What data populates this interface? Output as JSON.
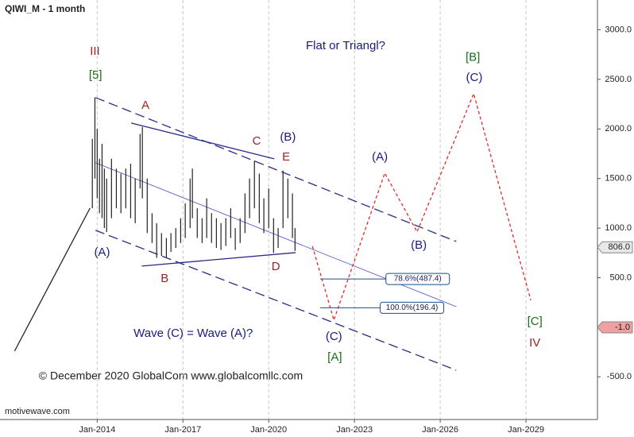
{
  "chart_data": {
    "type": "ohlc",
    "title": "QIWI_M - 1 month",
    "watermark": "motivewave.com",
    "copyright": "© December 2020 GlobalCom www.globalcomllc.com",
    "xlim": [
      2010.6,
      2031.5
    ],
    "ylim": [
      -930,
      3300
    ],
    "xticks": [
      {
        "value": 2014,
        "label": "Jan-2014"
      },
      {
        "value": 2017,
        "label": "Jan-2017"
      },
      {
        "value": 2020,
        "label": "Jan-2020"
      },
      {
        "value": 2023,
        "label": "Jan-2023"
      },
      {
        "value": 2026,
        "label": "Jan-2026"
      },
      {
        "value": 2029,
        "label": "Jan-2029"
      }
    ],
    "yticks": [
      {
        "value": 3000,
        "label": "3000.0"
      },
      {
        "value": 2500,
        "label": "2500.0"
      },
      {
        "value": 2000,
        "label": "2000.0"
      },
      {
        "value": 1500,
        "label": "1500.0"
      },
      {
        "value": 1000,
        "label": "1000.0"
      },
      {
        "value": 500,
        "label": "500.0"
      },
      {
        "value": -500,
        "label": "-500.0"
      }
    ],
    "grid": "vertical",
    "bar_color": "#222222",
    "x": [
      2013.83,
      2013.92,
      2014.0,
      2014.08,
      2014.17,
      2014.25,
      2014.33,
      2014.5,
      2014.67,
      2014.83,
      2015.0,
      2015.17,
      2015.33,
      2015.5,
      2015.58,
      2015.75,
      2015.92,
      2016.08,
      2016.25,
      2016.42,
      2016.58,
      2016.75,
      2016.92,
      2017.08,
      2017.25,
      2017.33,
      2017.5,
      2017.67,
      2017.83,
      2018.0,
      2018.17,
      2018.33,
      2018.5,
      2018.67,
      2018.83,
      2019.0,
      2019.17,
      2019.33,
      2019.5,
      2019.67,
      2019.83,
      2020.0,
      2020.17,
      2020.33,
      2020.5,
      2020.67,
      2020.83,
      2020.92
    ],
    "high": [
      1900,
      2316,
      2000,
      1700,
      1850,
      1600,
      1500,
      1700,
      1600,
      1550,
      1600,
      1650,
      1500,
      1950,
      2020,
      1500,
      1150,
      1050,
      950,
      900,
      950,
      1000,
      1100,
      1250,
      1500,
      1600,
      1200,
      1100,
      1300,
      1150,
      1100,
      1050,
      1100,
      1200,
      1000,
      1100,
      1350,
      1500,
      1680,
      1550,
      1300,
      1400,
      1100,
      1000,
      1580,
      1500,
      1350,
      1000
    ],
    "low": [
      1200,
      1500,
      1300,
      1150,
      1100,
      1000,
      960,
      1100,
      1200,
      1150,
      1200,
      1100,
      1050,
      1400,
      1300,
      950,
      850,
      700,
      720,
      700,
      760,
      800,
      850,
      900,
      1000,
      1100,
      900,
      850,
      900,
      850,
      800,
      780,
      820,
      900,
      780,
      850,
      950,
      1100,
      1200,
      1050,
      950,
      1000,
      750,
      800,
      1000,
      1100,
      900,
      770
    ],
    "lines": [
      {
        "x": [
          2013.94,
          2026.56
        ],
        "y": [
          2316,
          865
        ],
        "color": "#2a2a8a",
        "style": "dashed"
      },
      {
        "x": [
          2013.94,
          2026.56
        ],
        "y": [
          978,
          -433
        ],
        "color": "#2a2a8a",
        "style": "dashed"
      },
      {
        "x": [
          2013.94,
          2026.56
        ],
        "y": [
          1659,
          208
        ],
        "color": "#4a4ac0",
        "style": "thin"
      },
      {
        "x": [
          2015.19,
          2020.19
        ],
        "y": [
          2059,
          1699
        ],
        "color": "#2a2a8a",
        "style": "solid"
      },
      {
        "x": [
          2015.56,
          2020.94
        ],
        "y": [
          617,
          753
        ],
        "color": "#2a2a8a",
        "style": "solid"
      },
      {
        "x": [
          2011.11,
          2013.75
        ],
        "y": [
          -240,
          1202
        ],
        "color": "#222222",
        "style": "solid"
      },
      {
        "x": [
          2021.53,
          2022.28,
          2024.06,
          2025.19,
          2027.17,
          2029.17
        ],
        "y": [
          817,
          72,
          1555,
          962,
          2356,
          272
        ],
        "color": "#e02020",
        "style": "dotted"
      }
    ],
    "fib_levels": [
      {
        "label": "78.6%(487.4)",
        "value": 487.4,
        "x": [
          2021.8,
          2024.1
        ],
        "color": "#1a4f8a"
      },
      {
        "label": "100.0%(196.4)",
        "value": 196.4,
        "x": [
          2021.8,
          2023.9
        ],
        "color": "#1a4f8a"
      }
    ],
    "price_markers": [
      {
        "value": 806,
        "label": "806.0",
        "color": "#e8e8e8"
      },
      {
        "value": -1,
        "label": "-1.0",
        "color": "#f0a0a0"
      }
    ],
    "annotations": [
      {
        "text": "III",
        "x": 2013.92,
        "y": 2780,
        "color": "#9b2323"
      },
      {
        "text": "[5]",
        "x": 2013.94,
        "y": 2540,
        "color": "#1a6e1a"
      },
      {
        "text": "A",
        "x": 2015.69,
        "y": 2236,
        "color": "#9b2323"
      },
      {
        "text": "C",
        "x": 2019.58,
        "y": 1875,
        "color": "#9b2323"
      },
      {
        "text": "(B)",
        "x": 2020.67,
        "y": 1915,
        "color": "#1a1a80"
      },
      {
        "text": "E",
        "x": 2020.61,
        "y": 1715,
        "color": "#9b2323"
      },
      {
        "text": "(A)",
        "x": 2014.17,
        "y": 753,
        "color": "#1a1a80"
      },
      {
        "text": "B",
        "x": 2016.36,
        "y": 489,
        "color": "#9b2323"
      },
      {
        "text": "D",
        "x": 2020.25,
        "y": 609,
        "color": "#9b2323"
      },
      {
        "text": "Flat or Triangl?",
        "x": 2022.69,
        "y": 2837,
        "color": "#1a1a80"
      },
      {
        "text": "[B]",
        "x": 2027.14,
        "y": 2717,
        "color": "#1a6e1a"
      },
      {
        "text": "(C)",
        "x": 2027.19,
        "y": 2516,
        "color": "#1a1a80"
      },
      {
        "text": "(A)",
        "x": 2023.89,
        "y": 1715,
        "color": "#1a1a80"
      },
      {
        "text": "(B)",
        "x": 2025.25,
        "y": 825,
        "color": "#1a1a80"
      },
      {
        "text": "(C)",
        "x": 2022.28,
        "y": -96,
        "color": "#1a1a80"
      },
      {
        "text": "[A]",
        "x": 2022.31,
        "y": -304,
        "color": "#1a6e1a"
      },
      {
        "text": "Wave (C) = Wave (A)?",
        "x": 2017.36,
        "y": -64,
        "color": "#1a1a80"
      },
      {
        "text": "[C]",
        "x": 2029.31,
        "y": 56,
        "color": "#1a6e1a"
      },
      {
        "text": "IV",
        "x": 2029.31,
        "y": -160,
        "color": "#9b2323"
      }
    ]
  }
}
